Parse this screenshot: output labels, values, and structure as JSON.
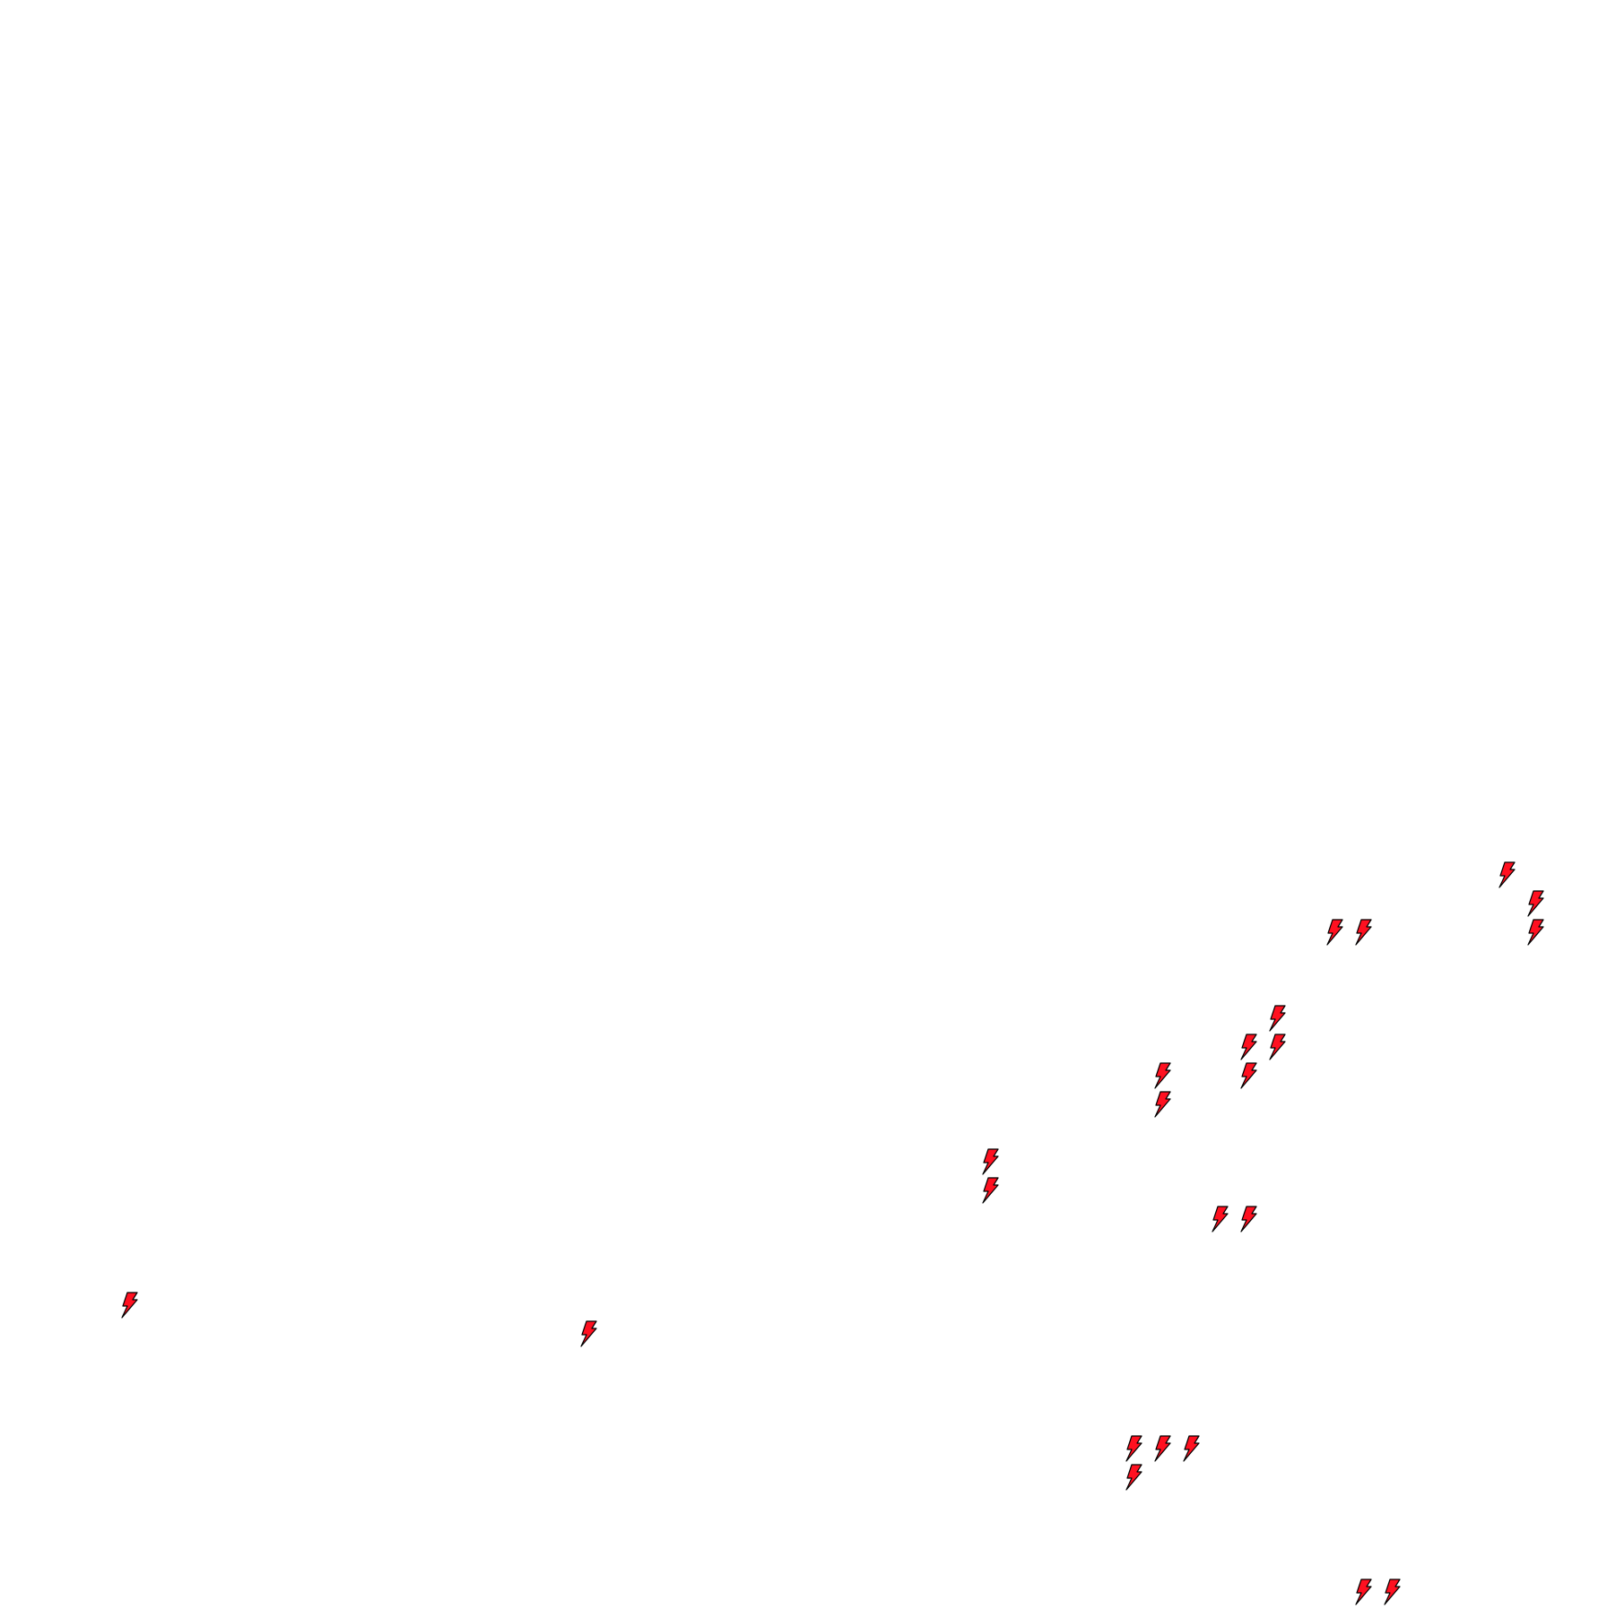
{
  "map": {
    "background_color": "#ffffff",
    "marker": {
      "icon": "lightning-bolt-icon",
      "fill_color": "#ff1020",
      "stroke_color": "#000000"
    }
  }
}
